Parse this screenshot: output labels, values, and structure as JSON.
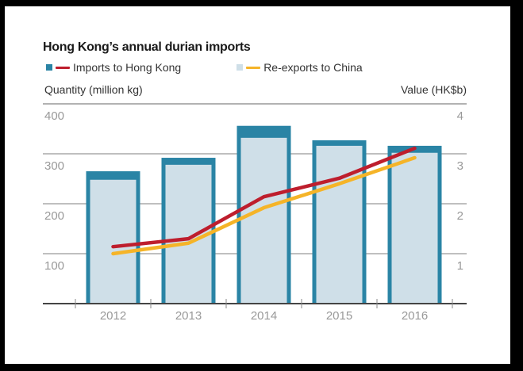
{
  "chart_data": {
    "type": "bar",
    "title": "Hong Kong’s annual durian imports",
    "categories": [
      "2012",
      "2013",
      "2014",
      "2015",
      "2016"
    ],
    "left_axis": {
      "label": "Quantity (million kg)",
      "ticks": [
        100,
        200,
        300,
        400
      ],
      "range": [
        0,
        400
      ]
    },
    "right_axis": {
      "label": "Value (HK$b)",
      "ticks": [
        1,
        2,
        3,
        4
      ],
      "range": [
        0,
        4
      ]
    },
    "grid": true,
    "legend_placement": "top-left",
    "bar_series": [
      {
        "name": "Imports to Hong Kong",
        "axis": "left",
        "color": "#2a84a5",
        "values": [
          265,
          292,
          356,
          327,
          316
        ]
      },
      {
        "name": "Re-exports to China",
        "axis": "left",
        "color": "#cfdfe8",
        "values": [
          248,
          278,
          332,
          316,
          302
        ]
      }
    ],
    "line_series": [
      {
        "name": "Imports to Hong Kong",
        "axis": "right",
        "color": "#be1e2d",
        "values": [
          1.14,
          1.3,
          2.14,
          2.51,
          3.11
        ]
      },
      {
        "name": "Re-exports to China",
        "axis": "right",
        "color": "#f5b428",
        "values": [
          1.0,
          1.21,
          1.92,
          2.4,
          2.92
        ]
      }
    ],
    "legend": [
      {
        "label": "Imports to Hong Kong",
        "box_color": "#2a84a5",
        "line_color": "#be1e2d"
      },
      {
        "label": "Re-exports to China",
        "box_color": "#cfdfe8",
        "line_color": "#f5b428"
      }
    ]
  }
}
